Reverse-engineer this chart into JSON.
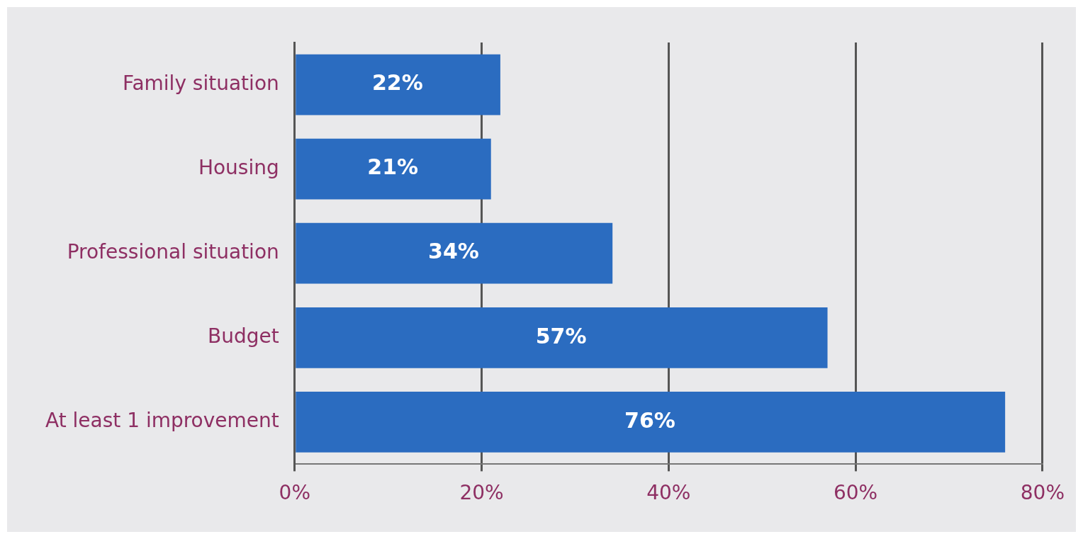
{
  "chart_data": {
    "type": "bar",
    "orientation": "horizontal",
    "categories": [
      "Family situation",
      "Housing",
      "Professional situation",
      "Budget",
      "At least 1 improvement"
    ],
    "values": [
      22,
      21,
      34,
      57,
      76
    ],
    "value_labels": [
      "22%",
      "21%",
      "34%",
      "57%",
      "76%"
    ],
    "color": "#2b6cc0",
    "xlim": [
      0,
      80
    ],
    "xticks": [
      {
        "value": 0,
        "label": "0%"
      },
      {
        "value": 20,
        "label": "20%"
      },
      {
        "value": 40,
        "label": "40%"
      },
      {
        "value": 60,
        "label": "60%"
      },
      {
        "value": 80,
        "label": "80%"
      }
    ],
    "grid": "x",
    "legend": false
  }
}
